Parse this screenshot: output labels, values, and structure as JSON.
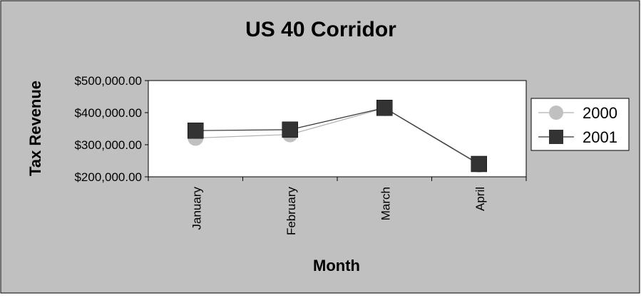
{
  "chart_data": {
    "type": "line",
    "title": "US 40 Corridor",
    "xlabel": "Month",
    "ylabel": "Tax Revenue",
    "categories": [
      "January",
      "February",
      "March",
      "April"
    ],
    "series": [
      {
        "name": "2000",
        "values": [
          321000,
          332000,
          414000,
          238000
        ],
        "color": "#c0c0c0",
        "marker": "circle"
      },
      {
        "name": "2001",
        "values": [
          344000,
          347000,
          415000,
          240000
        ],
        "color": "#333333",
        "marker": "square"
      }
    ],
    "ylim": [
      200000,
      500000
    ],
    "yticks": [
      {
        "value": 500000,
        "label": "$500,000.00"
      },
      {
        "value": 400000,
        "label": "$400,000.00"
      },
      {
        "value": 300000,
        "label": "$300,000.00"
      },
      {
        "value": 200000,
        "label": "$200,000.00"
      }
    ],
    "grid": false,
    "legend_position": "right",
    "colors": {
      "chart_area": "#c0c0c0",
      "plot_area": "#ffffff",
      "border": "#000000"
    }
  }
}
